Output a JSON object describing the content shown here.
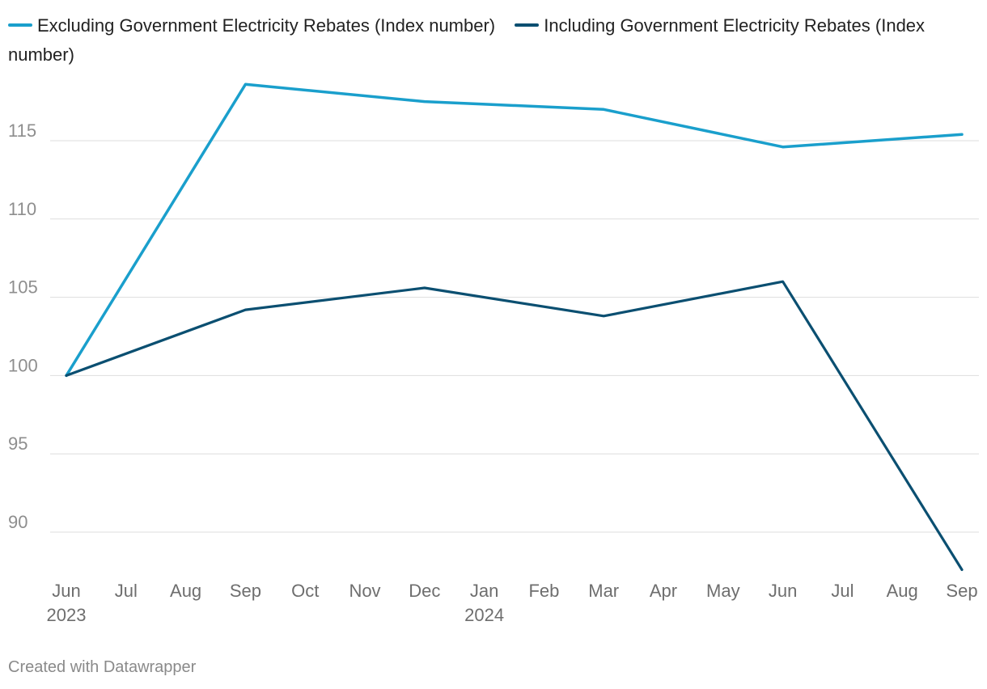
{
  "chart_data": {
    "type": "line",
    "title": "",
    "xlabel": "",
    "ylabel": "",
    "x": [
      "Jun",
      "Jul",
      "Aug",
      "Sep",
      "Oct",
      "Nov",
      "Dec",
      "Jan",
      "Feb",
      "Mar",
      "Apr",
      "May",
      "Jun",
      "Jul",
      "Aug",
      "Sep"
    ],
    "x_year_labels": [
      {
        "index": 0,
        "label": "2023"
      },
      {
        "index": 7,
        "label": "2024"
      }
    ],
    "yticks": [
      90,
      95,
      100,
      105,
      110,
      115
    ],
    "ylim": [
      87.5,
      118.6
    ],
    "series": [
      {
        "name": "Excluding Government Electricity Rebates (Index number)",
        "color": "#1a9fcc",
        "points": [
          [
            0,
            100.0
          ],
          [
            3,
            118.6
          ],
          [
            6,
            117.5
          ],
          [
            9,
            117.0
          ],
          [
            12,
            114.6
          ],
          [
            15,
            115.4
          ]
        ]
      },
      {
        "name": "Including Government Electricity Rebates (Index number)",
        "color": "#0b4f71",
        "points": [
          [
            0,
            100.0
          ],
          [
            3,
            104.2
          ],
          [
            6,
            105.6
          ],
          [
            9,
            103.8
          ],
          [
            12,
            106.0
          ],
          [
            15,
            87.6
          ]
        ]
      }
    ]
  },
  "footer": "Created with Datawrapper"
}
